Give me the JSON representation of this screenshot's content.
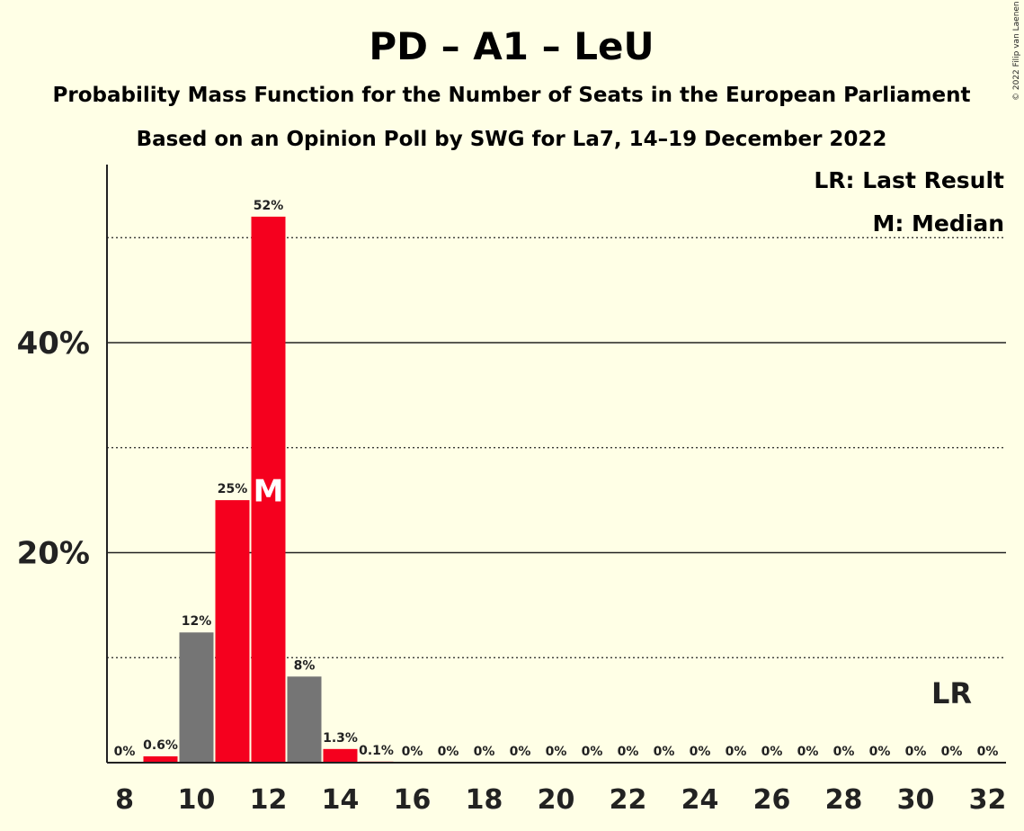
{
  "title": "PD – A1 – LeU",
  "subtitle1": "Probability Mass Function for the Number of Seats in the European Parliament",
  "subtitle2": "Based on an Opinion Poll by SWG for La7, 14–19 December 2022",
  "copyright": "© 2022 Filip van Laenen",
  "legend": {
    "last_result": "LR: Last Result",
    "median": "M: Median"
  },
  "markers": {
    "median_letter": "M",
    "last_result_letter": "LR",
    "median_seat": 12,
    "last_result_seat": 31
  },
  "colors": {
    "background": "#FFFFE6",
    "red": "#F5001E",
    "grey": "#757575",
    "text": "#222222"
  },
  "chart_data": {
    "type": "bar",
    "xlabel": "",
    "ylabel": "",
    "ylim": [
      0,
      57
    ],
    "y_major_ticks": [
      20,
      40
    ],
    "y_major_tick_labels": [
      "20%",
      "40%"
    ],
    "y_minor_gridlines": [
      10,
      30,
      50
    ],
    "x_tick_labels": [
      "8",
      "10",
      "12",
      "14",
      "16",
      "18",
      "20",
      "22",
      "24",
      "26",
      "28",
      "30",
      "32"
    ],
    "x": [
      8,
      9,
      10,
      11,
      12,
      13,
      14,
      15,
      16,
      17,
      18,
      19,
      20,
      21,
      22,
      23,
      24,
      25,
      26,
      27,
      28,
      29,
      30,
      31,
      32
    ],
    "values": [
      0,
      0.6,
      12.4,
      25.0,
      52.0,
      8.2,
      1.3,
      0.1,
      0,
      0,
      0,
      0,
      0,
      0,
      0,
      0,
      0,
      0,
      0,
      0,
      0,
      0,
      0,
      0,
      0
    ],
    "labels": [
      "0%",
      "0.6%",
      "12%",
      "25%",
      "52%",
      "8%",
      "1.3%",
      "0.1%",
      "0%",
      "0%",
      "0%",
      "0%",
      "0%",
      "0%",
      "0%",
      "0%",
      "0%",
      "0%",
      "0%",
      "0%",
      "0%",
      "0%",
      "0%",
      "0%",
      "0%"
    ],
    "bar_colors": [
      "red",
      "red",
      "grey",
      "red",
      "red",
      "grey",
      "red",
      "red",
      "red",
      "red",
      "red",
      "red",
      "red",
      "red",
      "red",
      "red",
      "red",
      "red",
      "red",
      "red",
      "red",
      "red",
      "red",
      "red",
      "red"
    ]
  }
}
